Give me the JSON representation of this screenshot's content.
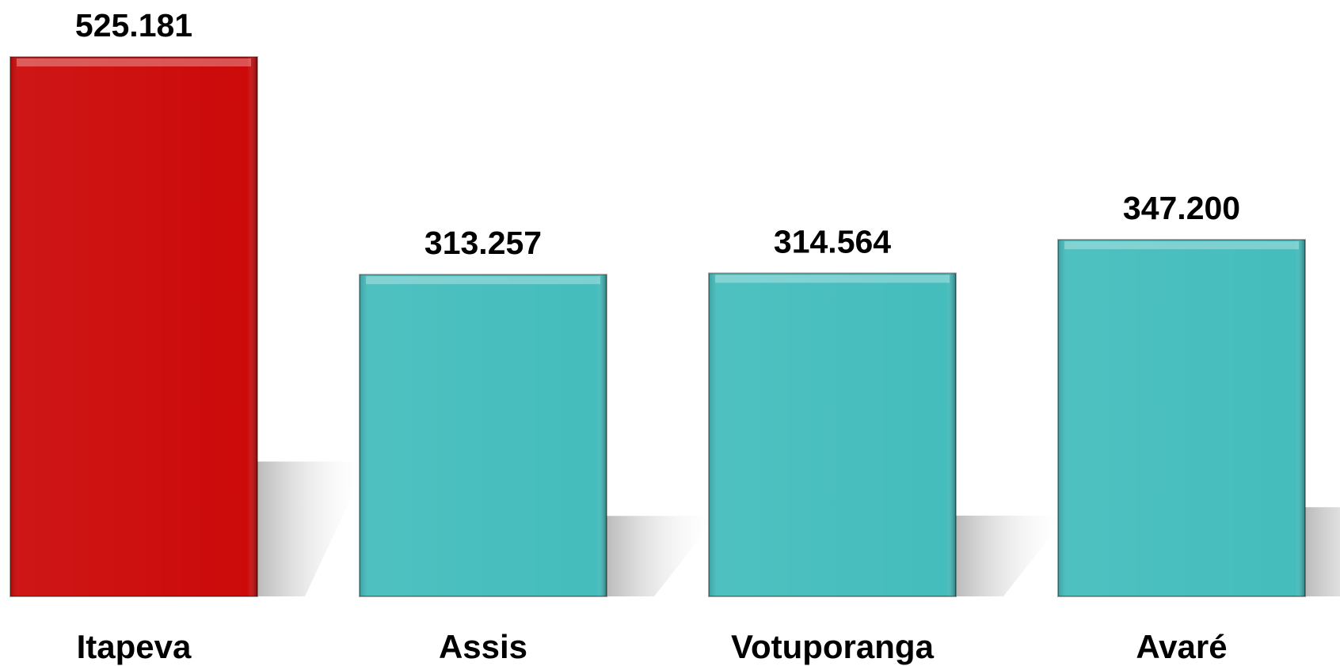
{
  "chart_data": {
    "type": "bar",
    "categories": [
      "Itapeva",
      "Assis",
      "Votuporanga",
      "Avaré"
    ],
    "values": [
      525181,
      313257,
      314564,
      347200
    ],
    "value_labels": [
      "525.181",
      "313.257",
      "314.564",
      "347.200"
    ],
    "colors": [
      "#cc0a0a",
      "#45bdbd",
      "#45bdbd",
      "#45bdbd"
    ]
  }
}
